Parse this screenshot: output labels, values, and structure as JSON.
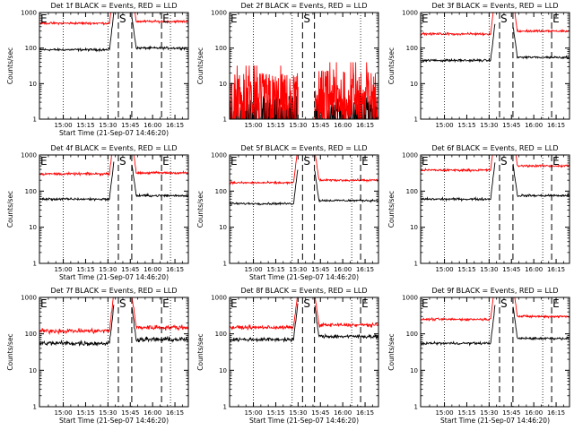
{
  "colors": {
    "events": "#000000",
    "lld": "#ff0000",
    "axes": "#000000",
    "background": "#ffffff"
  },
  "chart_data": [
    {
      "type": "line",
      "title": "Det 1f BLACK = Events, RED = LLD",
      "xlabel": "Start Time (21-Sep-07 14:46:20)",
      "ylabel": "Counts/sec",
      "x_ticks": [
        "15:00",
        "15:15",
        "15:30",
        "15:45",
        "16:00",
        "16:15"
      ],
      "y_scale": "log",
      "ylim": [
        1,
        1000
      ],
      "y_tick_labels": [
        "1",
        "10",
        "100",
        "1000"
      ],
      "x_range_min": [
        -2,
        98
      ],
      "gap_min": [
        48,
        60
      ],
      "noise": 0.04,
      "curve": "normal",
      "markers": [
        {
          "label": "E",
          "x_min": -2
        },
        {
          "label": "S",
          "x_min": 51
        },
        {
          "label": "E",
          "x_min": 80
        }
      ],
      "dotted_x_min": [
        14,
        44,
        86
      ],
      "series": [
        {
          "name": "Events",
          "color": "#000000",
          "level_pre": 90,
          "level_post": 100
        },
        {
          "name": "LLD",
          "color": "#ff0000",
          "level_pre": 500,
          "level_post": 560
        }
      ]
    },
    {
      "type": "line",
      "title": "Det 2f BLACK = Events, RED = LLD",
      "xlabel": "",
      "ylabel": "Counts/sec",
      "x_ticks": [
        "15:00",
        "15:15",
        "15:30",
        "15:45",
        "16:00",
        "16:15"
      ],
      "y_scale": "log",
      "ylim": [
        1,
        1000
      ],
      "y_tick_labels": [
        "1",
        "10",
        "100",
        "1000"
      ],
      "x_range_min": [
        -2,
        98
      ],
      "gap_min": [
        44,
        55
      ],
      "noise": 0.35,
      "curve": "noisy",
      "markers": [
        {
          "label": "E",
          "x_min": -2
        },
        {
          "label": "S",
          "x_min": 47
        }
      ],
      "dotted_x_min": [
        14,
        40,
        86
      ],
      "series": [
        {
          "name": "Events",
          "color": "#000000",
          "level_pre": 1.6,
          "level_post": 1.6
        },
        {
          "name": "LLD",
          "color": "#ff0000",
          "level_pre": 4,
          "level_post": 5
        }
      ]
    },
    {
      "type": "line",
      "title": "Det 3f BLACK = Events, RED = LLD",
      "xlabel": "",
      "ylabel": "Counts/sec",
      "x_ticks": [
        "15:00",
        "15:15",
        "15:30",
        "15:45",
        "16:00",
        "16:15"
      ],
      "y_scale": "log",
      "ylim": [
        1,
        1000
      ],
      "y_tick_labels": [
        "1",
        "10",
        "100",
        "1000"
      ],
      "x_range_min": [
        -2,
        98
      ],
      "gap_min": [
        48,
        60
      ],
      "noise": 0.04,
      "curve": "normal",
      "markers": [
        {
          "label": "E",
          "x_min": -2
        },
        {
          "label": "S",
          "x_min": 51
        },
        {
          "label": "E",
          "x_min": 86
        }
      ],
      "dotted_x_min": [
        14,
        44,
        80
      ],
      "series": [
        {
          "name": "Events",
          "color": "#000000",
          "level_pre": 45,
          "level_post": 55
        },
        {
          "name": "LLD",
          "color": "#ff0000",
          "level_pre": 250,
          "level_post": 300
        }
      ]
    },
    {
      "type": "line",
      "title": "Det 4f BLACK = Events, RED = LLD",
      "xlabel": "Start Time (21-Sep-07 14:46:20)",
      "ylabel": "Counts/sec",
      "x_ticks": [
        "15:00",
        "15:15",
        "15:30",
        "15:45",
        "16:00",
        "16:15"
      ],
      "y_scale": "log",
      "ylim": [
        1,
        1000
      ],
      "y_tick_labels": [
        "1",
        "10",
        "100",
        "1000"
      ],
      "x_range_min": [
        -2,
        98
      ],
      "gap_min": [
        48,
        60
      ],
      "noise": 0.04,
      "curve": "normal",
      "markers": [
        {
          "label": "E",
          "x_min": -2
        },
        {
          "label": "S",
          "x_min": 51
        },
        {
          "label": "E",
          "x_min": 80
        }
      ],
      "dotted_x_min": [
        14,
        44,
        86
      ],
      "series": [
        {
          "name": "Events",
          "color": "#000000",
          "level_pre": 60,
          "level_post": 75
        },
        {
          "name": "LLD",
          "color": "#ff0000",
          "level_pre": 300,
          "level_post": 320
        }
      ]
    },
    {
      "type": "line",
      "title": "Det 5f BLACK = Events, RED = LLD",
      "xlabel": "Start Time (21-Sep-07 14:46:20)",
      "ylabel": "Counts/sec",
      "x_ticks": [
        "15:00",
        "15:15",
        "15:30",
        "15:45",
        "16:00",
        "16:15"
      ],
      "y_scale": "log",
      "ylim": [
        1,
        1000
      ],
      "y_tick_labels": [
        "1",
        "10",
        "100",
        "1000"
      ],
      "x_range_min": [
        -2,
        98
      ],
      "gap_min": [
        44,
        55
      ],
      "noise": 0.035,
      "curve": "normal",
      "markers": [
        {
          "label": "E",
          "x_min": -2
        },
        {
          "label": "S",
          "x_min": 47
        },
        {
          "label": "E",
          "x_min": 86
        }
      ],
      "dotted_x_min": [
        14,
        40,
        80
      ],
      "series": [
        {
          "name": "Events",
          "color": "#000000",
          "level_pre": 45,
          "level_post": 55
        },
        {
          "name": "LLD",
          "color": "#ff0000",
          "level_pre": 170,
          "level_post": 200
        }
      ]
    },
    {
      "type": "line",
      "title": "Det 6f BLACK = Events, RED = LLD",
      "xlabel": "",
      "ylabel": "Counts/sec",
      "x_ticks": [
        "15:00",
        "15:15",
        "15:30",
        "15:45",
        "16:00",
        "16:15"
      ],
      "y_scale": "log",
      "ylim": [
        1,
        1000
      ],
      "y_tick_labels": [
        "1",
        "10",
        "100",
        "1000"
      ],
      "x_range_min": [
        -2,
        98
      ],
      "gap_min": [
        48,
        60
      ],
      "noise": 0.04,
      "curve": "normal",
      "markers": [
        {
          "label": "E",
          "x_min": -2
        },
        {
          "label": "S",
          "x_min": 51
        },
        {
          "label": "E",
          "x_min": 86
        }
      ],
      "dotted_x_min": [
        14,
        44,
        80
      ],
      "series": [
        {
          "name": "Events",
          "color": "#000000",
          "level_pre": 60,
          "level_post": 75
        },
        {
          "name": "LLD",
          "color": "#ff0000",
          "level_pre": 380,
          "level_post": 500
        }
      ]
    },
    {
      "type": "line",
      "title": "Det 7f BLACK = Events, RED = LLD",
      "xlabel": "Start Time (21-Sep-07 14:46:20)",
      "ylabel": "Counts/sec",
      "x_ticks": [
        "15:00",
        "15:15",
        "15:30",
        "15:45",
        "16:00",
        "16:15"
      ],
      "y_scale": "log",
      "ylim": [
        1,
        1000
      ],
      "y_tick_labels": [
        "1",
        "10",
        "100",
        "1000"
      ],
      "x_range_min": [
        -2,
        98
      ],
      "gap_min": [
        48,
        60
      ],
      "noise": 0.08,
      "curve": "normal",
      "markers": [
        {
          "label": "E",
          "x_min": -2
        },
        {
          "label": "S",
          "x_min": 51
        },
        {
          "label": "E",
          "x_min": 80
        }
      ],
      "dotted_x_min": [
        14,
        44,
        86
      ],
      "series": [
        {
          "name": "Events",
          "color": "#000000",
          "level_pre": 55,
          "level_post": 70
        },
        {
          "name": "LLD",
          "color": "#ff0000",
          "level_pre": 120,
          "level_post": 150
        }
      ]
    },
    {
      "type": "line",
      "title": "Det 8f BLACK = Events, RED = LLD",
      "xlabel": "Start Time (21-Sep-07 14:46:20)",
      "ylabel": "Counts/sec",
      "x_ticks": [
        "15:00",
        "15:15",
        "15:30",
        "15:45",
        "16:00",
        "16:15"
      ],
      "y_scale": "log",
      "ylim": [
        1,
        1000
      ],
      "y_tick_labels": [
        "1",
        "10",
        "100",
        "1000"
      ],
      "x_range_min": [
        -2,
        98
      ],
      "gap_min": [
        44,
        55
      ],
      "noise": 0.06,
      "curve": "normal",
      "markers": [
        {
          "label": "E",
          "x_min": -2
        },
        {
          "label": "S",
          "x_min": 47
        },
        {
          "label": "E",
          "x_min": 86
        }
      ],
      "dotted_x_min": [
        14,
        40,
        80
      ],
      "series": [
        {
          "name": "Events",
          "color": "#000000",
          "level_pre": 70,
          "level_post": 85
        },
        {
          "name": "LLD",
          "color": "#ff0000",
          "level_pre": 150,
          "level_post": 175
        }
      ]
    },
    {
      "type": "line",
      "title": "Det 9f BLACK = Events, RED = LLD",
      "xlabel": "Start Time (21-Sep-07 14:46:20)",
      "ylabel": "Counts/sec",
      "x_ticks": [
        "15:00",
        "15:15",
        "15:30",
        "15:45",
        "16:00",
        "16:15"
      ],
      "y_scale": "log",
      "ylim": [
        1,
        1000
      ],
      "y_tick_labels": [
        "1",
        "10",
        "100",
        "1000"
      ],
      "x_range_min": [
        -2,
        98
      ],
      "gap_min": [
        48,
        60
      ],
      "noise": 0.04,
      "curve": "normal",
      "markers": [
        {
          "label": "E",
          "x_min": -2
        },
        {
          "label": "S",
          "x_min": 51
        },
        {
          "label": "E",
          "x_min": 86
        }
      ],
      "dotted_x_min": [
        14,
        44,
        80
      ],
      "series": [
        {
          "name": "Events",
          "color": "#000000",
          "level_pre": 55,
          "level_post": 75
        },
        {
          "name": "LLD",
          "color": "#ff0000",
          "level_pre": 250,
          "level_post": 300
        }
      ]
    }
  ]
}
